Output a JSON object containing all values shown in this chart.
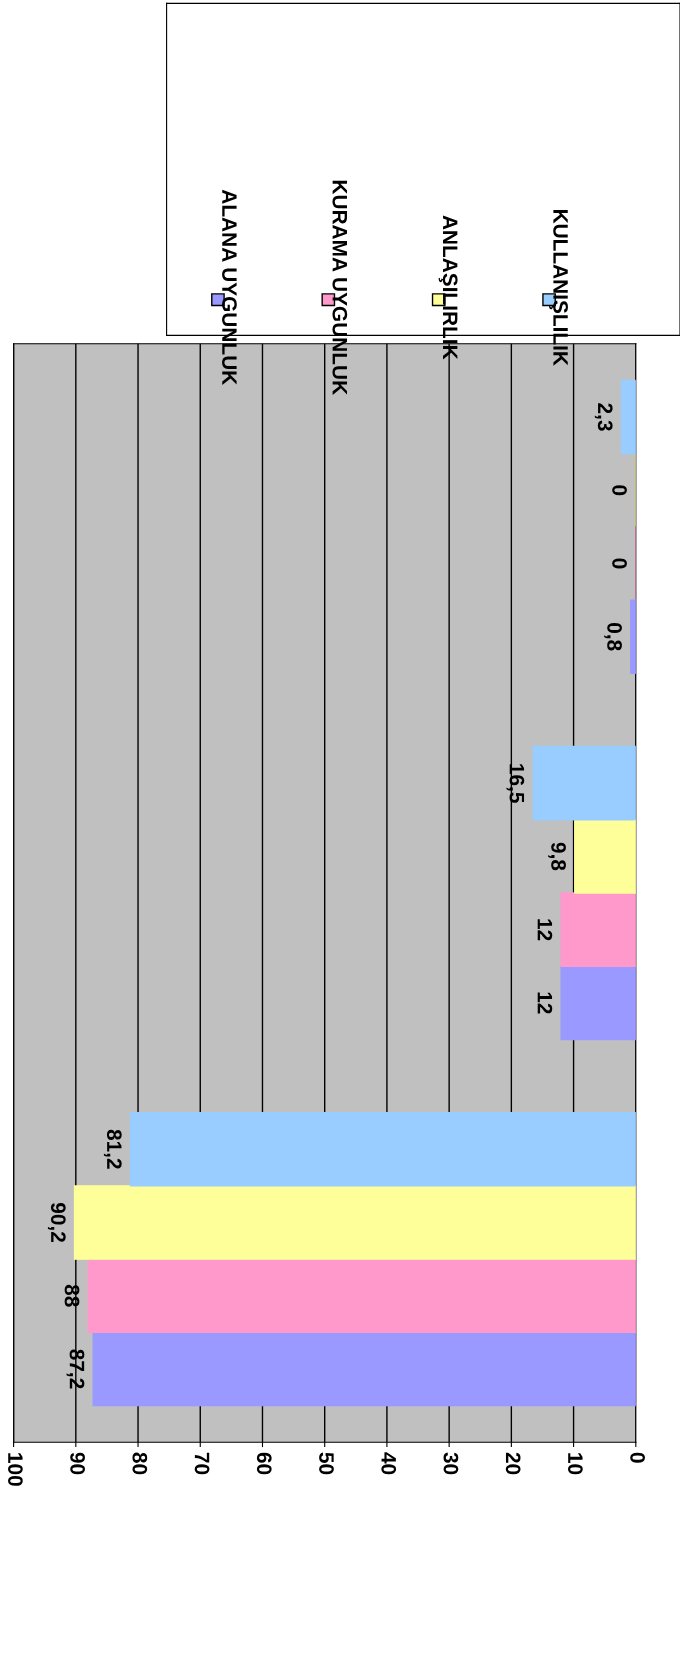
{
  "chart_data": {
    "type": "bar",
    "orientation": "horizontal",
    "categories": [
      null,
      null,
      null
    ],
    "series": [
      {
        "name": "ALANA UYGUNLUK",
        "color": "#9999ff",
        "values": [
          0.8,
          12,
          87.2
        ],
        "value_labels": [
          "0,8",
          "12",
          "87,2"
        ]
      },
      {
        "name": "KURAMA UYGUNLUK",
        "color": "#ff99cc",
        "values": [
          0,
          12,
          88
        ],
        "value_labels": [
          "0",
          "12",
          "88"
        ]
      },
      {
        "name": "ANLAŞILIRLIK",
        "color": "#ffff99",
        "values": [
          0,
          9.8,
          90.2
        ],
        "value_labels": [
          "0",
          "9,8",
          "90,2"
        ]
      },
      {
        "name": "KULLANIŞLILIK",
        "color": "#99ccff",
        "values": [
          2.3,
          16.5,
          81.2
        ],
        "value_labels": [
          "2,3",
          "16,5",
          "81,2"
        ]
      }
    ],
    "xlim": [
      100,
      0
    ],
    "xticks": [
      0,
      10,
      20,
      30,
      40,
      50,
      60,
      70,
      80,
      90,
      100
    ],
    "grid": "x",
    "legend": "top right"
  }
}
